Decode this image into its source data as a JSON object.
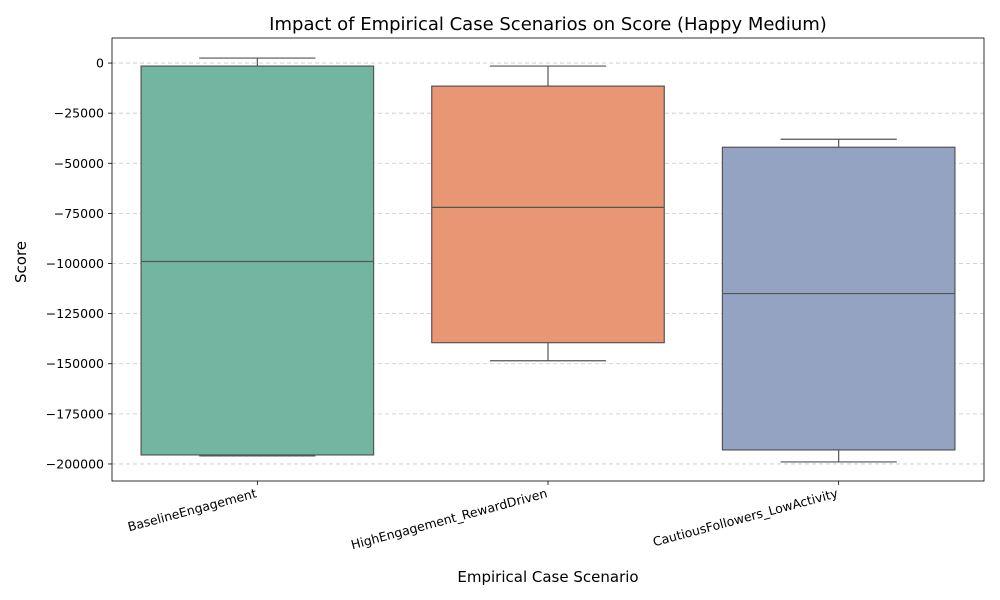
{
  "chart_data": {
    "type": "box",
    "title": "Impact of Empirical Case Scenarios on Score (Happy Medium)",
    "xlabel": "Empirical Case Scenario",
    "ylabel": "Score",
    "ylim": [
      -208500,
      12500
    ],
    "yticks": [
      0,
      -25000,
      -50000,
      -75000,
      -100000,
      -125000,
      -150000,
      -175000,
      -200000
    ],
    "ytick_labels": [
      "0",
      "−25000",
      "−50000",
      "−75000",
      "−100000",
      "−125000",
      "−150000",
      "−175000",
      "−200000"
    ],
    "grid": "y-dashed",
    "categories": [
      "BaselineEngagement",
      "HighEngagement_RewardDriven",
      "CautiousFollowers_LowActivity"
    ],
    "boxes": [
      {
        "category": "BaselineEngagement",
        "whisker_low": -196000,
        "q1": -195500,
        "median": -99000,
        "q3": -1500,
        "whisker_high": 2500,
        "color": "#72b6a1"
      },
      {
        "category": "HighEngagement_RewardDriven",
        "whisker_low": -148500,
        "q1": -139500,
        "median": -72000,
        "q3": -11500,
        "whisker_high": -1500,
        "color": "#e99675"
      },
      {
        "category": "CautiousFollowers_LowActivity",
        "whisker_low": -199000,
        "q1": -193000,
        "median": -115000,
        "q3": -42000,
        "whisker_high": -38000,
        "color": "#95a3c3"
      }
    ]
  }
}
